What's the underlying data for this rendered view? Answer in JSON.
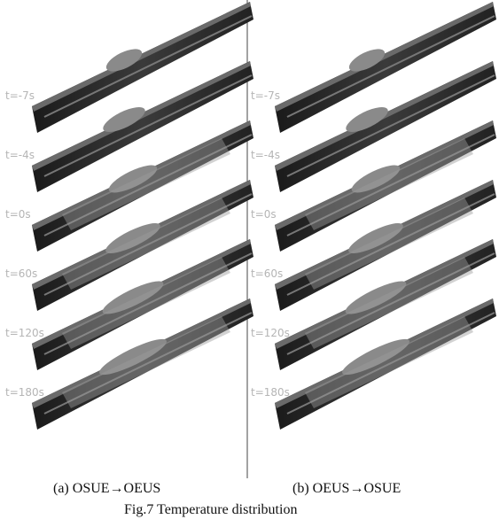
{
  "panels": {
    "left": {
      "labels": [
        "t=-7s",
        "t=-4s",
        "t=0s",
        "t=60s",
        "t=120s",
        "t=180s"
      ],
      "caption": "(a) OSUE→OEUS"
    },
    "right": {
      "labels": [
        "t=-7s",
        "t=-4s",
        "t=0s",
        "t=60s",
        "t=120s",
        "t=180s"
      ],
      "caption": "(b) OEUS→OSUE"
    }
  },
  "figure_caption": "Fig.7 Temperature distribution"
}
